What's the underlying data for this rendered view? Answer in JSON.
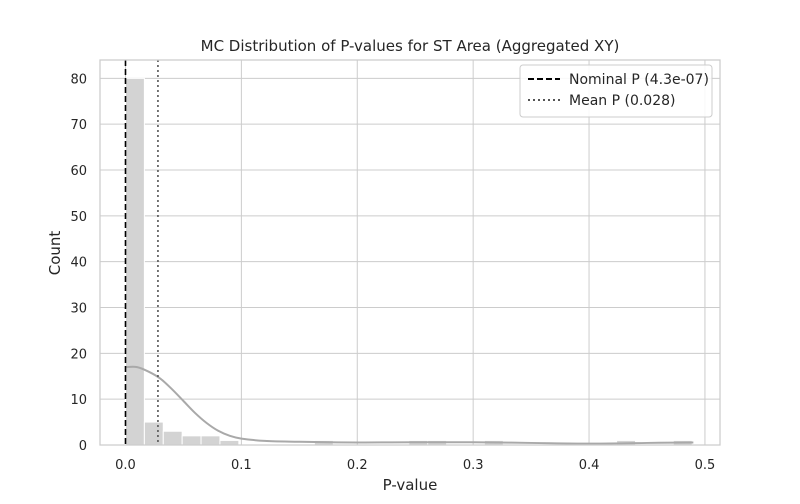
{
  "chart_data": {
    "type": "histogram",
    "title": "MC Distribution of P-values for ST Area (Aggregated XY)",
    "xlabel": "P-value",
    "ylabel": "Count",
    "xlim": [
      -0.022,
      0.513
    ],
    "ylim": [
      0,
      84
    ],
    "xticks": [
      0.0,
      0.1,
      0.2,
      0.3,
      0.4,
      0.5
    ],
    "xtick_labels": [
      "0.0",
      "0.1",
      "0.2",
      "0.3",
      "0.4",
      "0.5"
    ],
    "yticks": [
      0,
      10,
      20,
      30,
      40,
      50,
      60,
      70,
      80
    ],
    "ytick_labels": [
      "0",
      "10",
      "20",
      "30",
      "40",
      "50",
      "60",
      "70",
      "80"
    ],
    "grid": true,
    "legend_position": "top-right",
    "bin_edges": [
      0.0,
      0.0163,
      0.0326,
      0.0489,
      0.0652,
      0.0815,
      0.0978,
      0.1141,
      0.1304,
      0.1467,
      0.163,
      0.1793,
      0.1956,
      0.2119,
      0.2282,
      0.2445,
      0.2608,
      0.2771,
      0.2934,
      0.3097,
      0.326,
      0.3423,
      0.3586,
      0.3749,
      0.3912,
      0.4075,
      0.4238,
      0.4401,
      0.4564,
      0.4727,
      0.489
    ],
    "counts": [
      80,
      5,
      3,
      2,
      2,
      1,
      0,
      0,
      0,
      0,
      1,
      0,
      0,
      0,
      0,
      1,
      1,
      0,
      0,
      1,
      0,
      0,
      0,
      0,
      0,
      0,
      1,
      0,
      0,
      1
    ],
    "bar_color": "#d3d3d3",
    "kde": {
      "color": "#a9a9a9",
      "x": [
        0.0,
        0.01,
        0.02,
        0.03,
        0.04,
        0.05,
        0.06,
        0.07,
        0.08,
        0.09,
        0.1,
        0.12,
        0.15,
        0.2,
        0.25,
        0.3,
        0.35,
        0.4,
        0.45,
        0.49
      ],
      "y": [
        17,
        17,
        16,
        14.5,
        12.2,
        9.6,
        7,
        4.8,
        3.1,
        2,
        1.4,
        0.9,
        0.7,
        0.55,
        0.6,
        0.6,
        0.45,
        0.3,
        0.45,
        0.55
      ]
    },
    "series": [
      {
        "name": "Nominal P (4.3e-07)",
        "value": 4.3e-07,
        "style": "dashed",
        "color": "#000000"
      },
      {
        "name": "Mean P (0.028)",
        "value": 0.028,
        "style": "dotted",
        "color": "#555555"
      }
    ]
  }
}
